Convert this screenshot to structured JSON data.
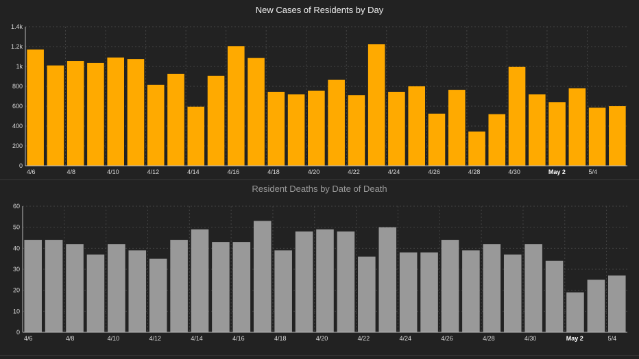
{
  "chart_data": [
    {
      "type": "bar",
      "title": "New Cases of Residents by Day",
      "xlabel": "",
      "ylabel": "",
      "ylim": [
        0,
        1400
      ],
      "y_ticks": [
        "0",
        "200",
        "400",
        "600",
        "800",
        "1k",
        "1.2k",
        "1.4k"
      ],
      "categories": [
        "4/6",
        "4/7",
        "4/8",
        "4/9",
        "4/10",
        "4/11",
        "4/12",
        "4/13",
        "4/14",
        "4/15",
        "4/16",
        "4/17",
        "4/18",
        "4/19",
        "4/20",
        "4/21",
        "4/22",
        "4/23",
        "4/24",
        "4/25",
        "4/26",
        "4/27",
        "4/28",
        "4/29",
        "4/30",
        "5/1",
        "May 2",
        "5/3",
        "5/4",
        "5/5"
      ],
      "x_tick_labels": [
        "4/6",
        "4/8",
        "4/10",
        "4/12",
        "4/14",
        "4/16",
        "4/18",
        "4/20",
        "4/22",
        "4/24",
        "4/26",
        "4/28",
        "4/30",
        "May 2",
        "5/4"
      ],
      "values": [
        1170,
        1010,
        1055,
        1035,
        1090,
        1075,
        815,
        925,
        595,
        905,
        1205,
        1085,
        745,
        720,
        755,
        865,
        710,
        1225,
        745,
        800,
        525,
        765,
        345,
        520,
        995,
        720,
        640,
        780,
        585,
        600
      ],
      "bar_color": "#FFAA00",
      "grid": true
    },
    {
      "type": "bar",
      "title": "Resident Deaths by Date of Death",
      "xlabel": "",
      "ylabel": "",
      "ylim": [
        0,
        60
      ],
      "y_ticks": [
        "0",
        "10",
        "20",
        "30",
        "40",
        "50",
        "60"
      ],
      "categories": [
        "4/6",
        "4/7",
        "4/8",
        "4/9",
        "4/10",
        "4/11",
        "4/12",
        "4/13",
        "4/14",
        "4/15",
        "4/16",
        "4/17",
        "4/18",
        "4/19",
        "4/20",
        "4/21",
        "4/22",
        "4/23",
        "4/24",
        "4/25",
        "4/26",
        "4/27",
        "4/28",
        "4/29",
        "4/30",
        "5/1",
        "May 2",
        "5/3",
        "5/4"
      ],
      "x_tick_labels": [
        "4/6",
        "4/8",
        "4/10",
        "4/12",
        "4/14",
        "4/16",
        "4/18",
        "4/20",
        "4/22",
        "4/24",
        "4/26",
        "4/28",
        "4/30",
        "May 2",
        "5/4"
      ],
      "values": [
        44,
        44,
        42,
        37,
        42,
        39,
        35,
        44,
        49,
        43,
        43,
        53,
        39,
        48,
        49,
        48,
        36,
        50,
        38,
        38,
        44,
        39,
        42,
        37,
        42,
        34,
        19,
        25,
        27
      ],
      "bar_color": "#999999",
      "grid": true
    }
  ]
}
